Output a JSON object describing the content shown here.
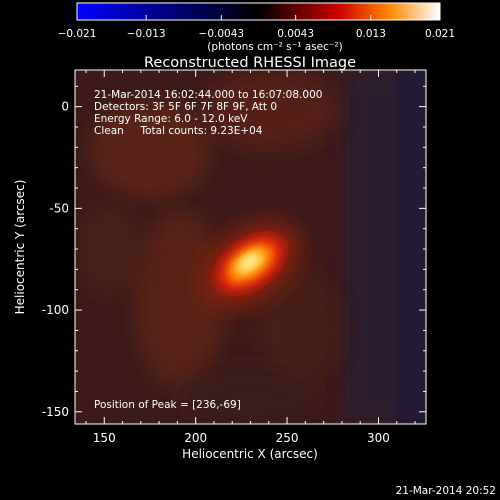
{
  "colorbar": {
    "tick_labels": [
      "−0.021",
      "−0.013",
      "−0.0043",
      "0.0043",
      "0.013",
      "0.021"
    ],
    "tick_values": [
      -0.021,
      -0.013,
      -0.0043,
      0.0043,
      0.013,
      0.021
    ],
    "range": [
      -0.021,
      0.021
    ],
    "units_label": "(photons cm⁻² s⁻¹ asec⁻²)"
  },
  "chart_data": {
    "type": "heatmap",
    "title": "Reconstructed RHESSI Image",
    "xlabel": "Heliocentric X (arcsec)",
    "ylabel": "Heliocentric Y (arcsec)",
    "xlim": [
      134,
      326
    ],
    "ylim": [
      -156,
      18
    ],
    "xticks": [
      150,
      200,
      250,
      300
    ],
    "yticks": [
      0,
      -50,
      -100,
      -150
    ],
    "annotations": [
      "21-Mar-2014 16:02:44.000 to 16:07:08.000",
      "Detectors: 3F 5F 6F 7F 8F 9F, Att 0",
      "Energy Range: 6.0 - 12.0 keV",
      "Clean     Total counts: 9.23E+04"
    ],
    "peak_label": "Position of Peak = [236,-69]",
    "peak": [
      236,
      -69
    ],
    "source": {
      "x": 232,
      "y": -68,
      "peak_flux": 0.021
    }
  },
  "footer": {
    "timestamp": "21-Mar-2014 20:52"
  }
}
